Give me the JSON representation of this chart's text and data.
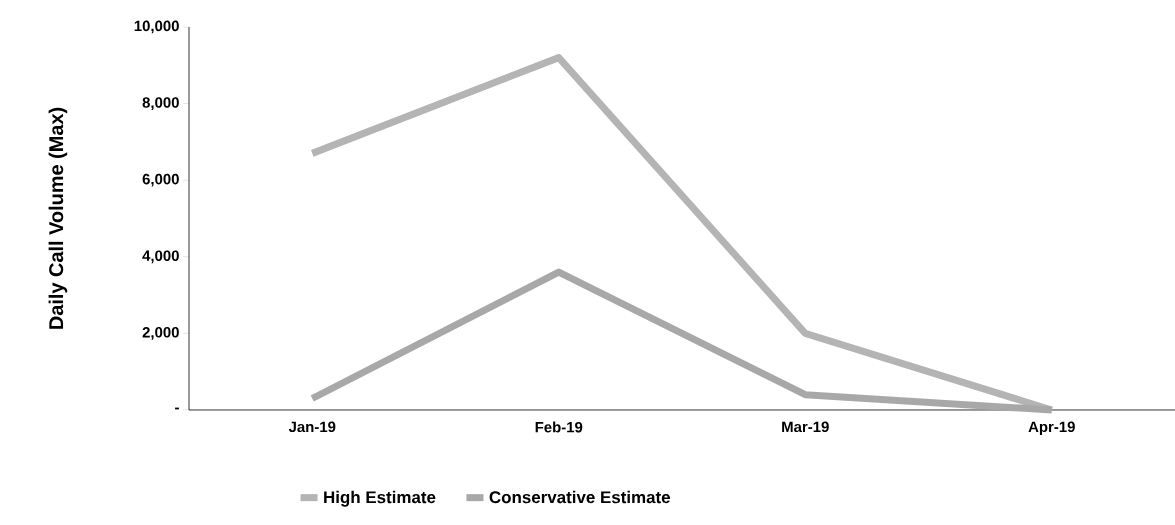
{
  "chart_data": {
    "type": "line",
    "ylabel": "Daily Call Volume (Max)",
    "categories": [
      "Jan-19",
      "Feb-19",
      "Mar-19",
      "Apr-19"
    ],
    "series": [
      {
        "name": "High Estimate",
        "color": "#b4b4b4",
        "values": [
          6700,
          9200,
          2000,
          0
        ]
      },
      {
        "name": "Conservative Estimate",
        "color": "#a8a8a8",
        "values": [
          300,
          3600,
          400,
          0
        ]
      }
    ],
    "ylim": [
      0,
      10000
    ],
    "yticks": [
      {
        "value": 0,
        "label": "-"
      },
      {
        "value": 2000,
        "label": "2,000"
      },
      {
        "value": 4000,
        "label": "4,000"
      },
      {
        "value": 6000,
        "label": "6,000"
      },
      {
        "value": 8000,
        "label": "8,000"
      },
      {
        "value": 10000,
        "label": "10,000"
      }
    ],
    "grid": false,
    "legend": "bottom",
    "marker": "none",
    "line_style": "solid"
  }
}
